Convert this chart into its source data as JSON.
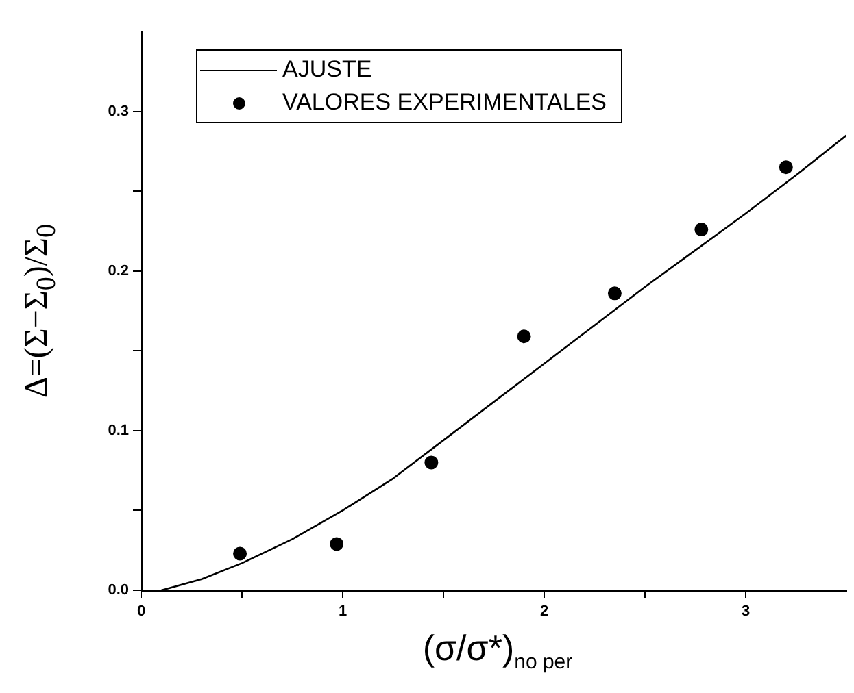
{
  "chart_data": {
    "type": "scatter",
    "xlabel": "(σ/σ*)$_{no per}$",
    "ylabel": "Δ=(Σ−Σ$_{0}$)/Σ$_{0}$",
    "xlim": [
      0,
      3.5
    ],
    "ylim": [
      0,
      0.35
    ],
    "xticks": [
      0,
      {
        "value": 0.5,
        "label": null
      },
      1,
      {
        "value": 1.5,
        "label": null
      },
      2,
      {
        "value": 2.5,
        "label": null
      },
      3
    ],
    "yticks": [
      {
        "value": 0,
        "label": "0.0"
      },
      {
        "value": 0.05,
        "label": null
      },
      0.1,
      {
        "value": 0.15,
        "label": null
      },
      0.2,
      {
        "value": 0.25,
        "label": null
      },
      0.3
    ],
    "grid": false,
    "legend": "top left",
    "series": [
      {
        "name": "AJUSTE",
        "type": "line",
        "color": "#000000",
        "marker": "none",
        "line_style": "solid",
        "x": [
          0.1,
          0.3,
          0.5,
          0.75,
          1.0,
          1.25,
          1.5,
          1.75,
          2.0,
          2.25,
          2.5,
          2.75,
          3.0,
          3.25,
          3.5
        ],
        "values": [
          0,
          0.007,
          0.017,
          0.032,
          0.05,
          0.07,
          0.094,
          0.118,
          0.142,
          0.166,
          0.19,
          0.213,
          0.236,
          0.26,
          0.285
        ]
      },
      {
        "name": "VALORES EXPERIMENTALES",
        "color": "#000000",
        "marker": "circle",
        "x": [
          0.49,
          0.97,
          1.44,
          1.9,
          2.35,
          2.78,
          3.2
        ],
        "values": [
          0.023,
          0.029,
          0.08,
          0.159,
          0.186,
          0.226,
          0.265
        ]
      }
    ]
  }
}
